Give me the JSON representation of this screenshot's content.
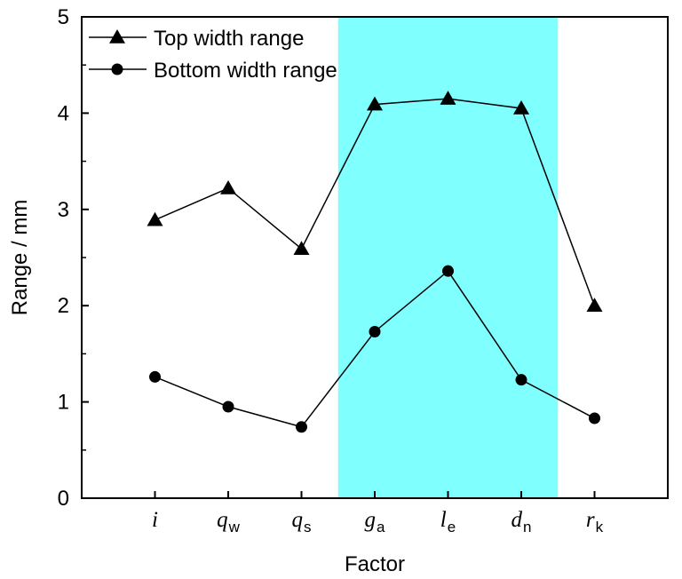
{
  "chart_data": {
    "type": "line",
    "xlabel": "Factor",
    "ylabel": "Range / mm",
    "ylim": [
      0,
      5
    ],
    "yticks": [
      0,
      1,
      2,
      3,
      4,
      5
    ],
    "categories": [
      {
        "main": "i",
        "sub": ""
      },
      {
        "main": "q",
        "sub": "w"
      },
      {
        "main": "q",
        "sub": "s"
      },
      {
        "main": "g",
        "sub": "a"
      },
      {
        "main": "l",
        "sub": "e"
      },
      {
        "main": "d",
        "sub": "n"
      },
      {
        "main": "r",
        "sub": "k"
      }
    ],
    "series": [
      {
        "name": "Top width range",
        "marker": "triangle",
        "values": [
          2.89,
          3.22,
          2.59,
          4.09,
          4.15,
          4.05,
          2.0
        ]
      },
      {
        "name": "Bottom width range",
        "marker": "circle",
        "values": [
          1.26,
          0.95,
          0.74,
          1.73,
          2.36,
          1.23,
          0.83
        ]
      }
    ],
    "highlight": {
      "from_category": 3,
      "to_category": 5,
      "color": "#80ffff"
    },
    "legend_position": "top-left",
    "grid": false
  }
}
